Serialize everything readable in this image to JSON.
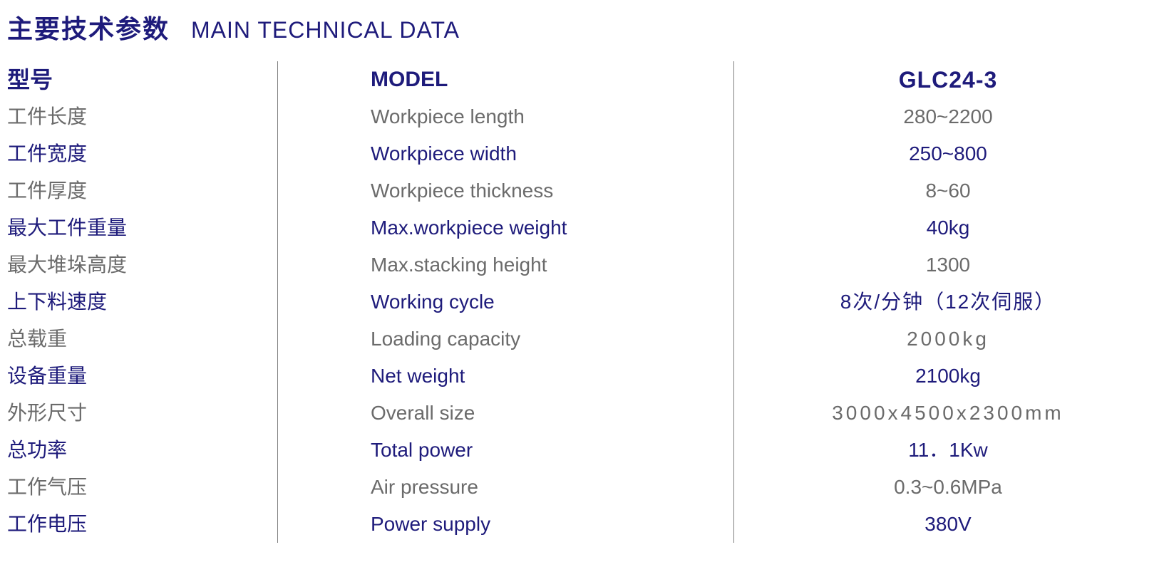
{
  "colors": {
    "accent": "#1e1b7b",
    "muted": "#6b6b6b",
    "divider": "#808080",
    "background": "#ffffff"
  },
  "typography": {
    "header_cn_size": 36,
    "header_en_size": 32,
    "row_size": 28,
    "header_row_size": 32
  },
  "header": {
    "cn": "主要技术参数",
    "en": "MAIN TECHNICAL DATA"
  },
  "columns": {
    "cn_header": "型号",
    "en_header": "MODEL",
    "val_header": "GLC24-3"
  },
  "rows": [
    {
      "cn": "工件长度",
      "en": "Workpiece length",
      "val": "280~2200",
      "accent": false
    },
    {
      "cn": "工件宽度",
      "en": "Workpiece width",
      "val": "250~800",
      "accent": true
    },
    {
      "cn": "工件厚度",
      "en": "Workpiece thickness",
      "val": "8~60",
      "accent": false
    },
    {
      "cn": "最大工件重量",
      "en": "Max.workpiece weight",
      "val": "40kg",
      "accent": true
    },
    {
      "cn": "最大堆垛高度",
      "en": "Max.stacking height",
      "val": "1300",
      "accent": false
    },
    {
      "cn": "上下料速度",
      "en": "Working cycle",
      "val": "8次/分钟（12次伺服）",
      "accent": true
    },
    {
      "cn": "总载重",
      "en": "Loading capacity",
      "val": "2000kg",
      "accent": false
    },
    {
      "cn": "设备重量",
      "en": "Net weight",
      "val": "2100kg",
      "accent": true
    },
    {
      "cn": "外形尺寸",
      "en": "Overall size",
      "val": "3000x4500x2300mm",
      "accent": false
    },
    {
      "cn": "总功率",
      "en": "Total power",
      "val": "11．1Kw",
      "accent": true
    },
    {
      "cn": "工作气压",
      "en": "Air pressure",
      "val": "0.3~0.6MPa",
      "accent": false
    },
    {
      "cn": "工作电压",
      "en": "Power supply",
      "val": "380V",
      "accent": true
    }
  ]
}
